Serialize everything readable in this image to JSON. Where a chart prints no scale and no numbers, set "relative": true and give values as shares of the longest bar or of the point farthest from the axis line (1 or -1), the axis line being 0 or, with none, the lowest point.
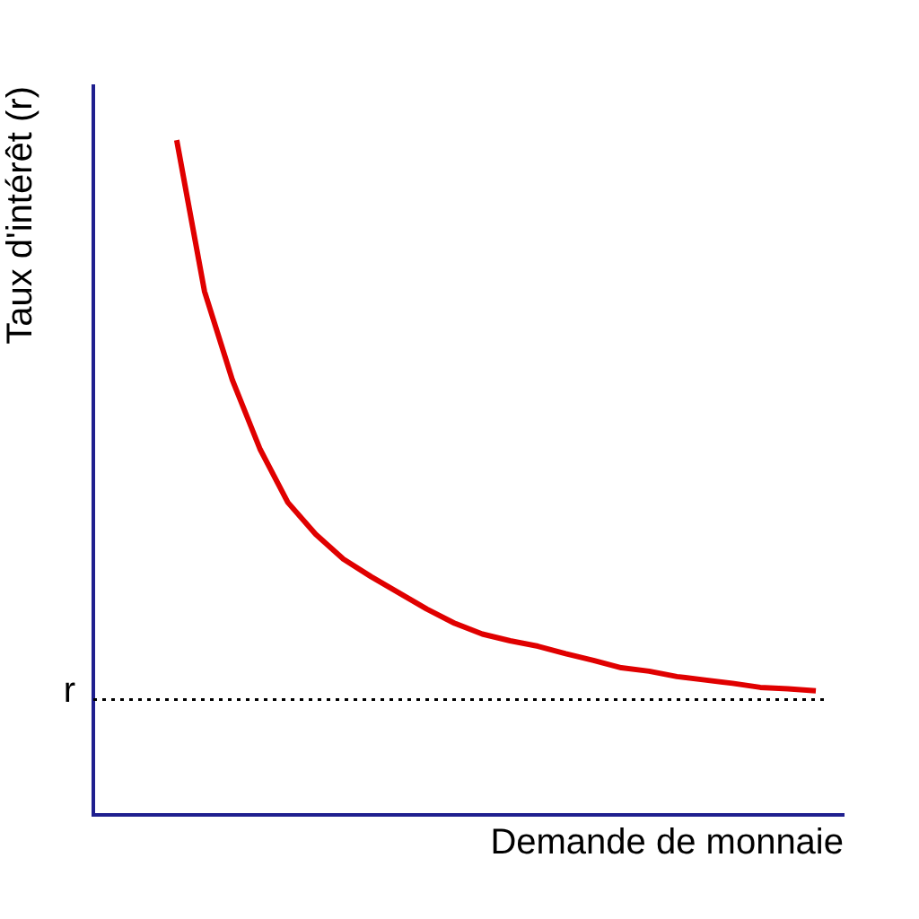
{
  "chart_data": {
    "type": "line",
    "relative": true,
    "xlabel": "Demande de monnaie",
    "ylabel": "Taux d'intérêt (r)",
    "categories": [
      null,
      null,
      null,
      null,
      null,
      null,
      null,
      null,
      null,
      null,
      null,
      null,
      null,
      null,
      null,
      null,
      null,
      null,
      null,
      null,
      null,
      null,
      null,
      null,
      null,
      null,
      null,
      null
    ],
    "series": [
      {
        "color": "#e00000",
        "values": [
          null,
          null,
          null,
          1.0,
          0.776,
          0.645,
          0.542,
          0.463,
          0.416,
          0.379,
          0.353,
          0.329,
          0.305,
          0.284,
          0.268,
          0.258,
          0.25,
          0.239,
          0.229,
          0.218,
          0.213,
          0.205,
          0.2,
          0.195,
          0.189,
          0.187,
          0.184,
          null
        ]
      }
    ],
    "ref_lines": [
      {
        "axis": "y",
        "value": 0.171,
        "label": "r",
        "color": "#000000",
        "line_style": "dotted"
      }
    ],
    "grid": false,
    "legend": false,
    "marker": "none",
    "line_style": "solid"
  }
}
